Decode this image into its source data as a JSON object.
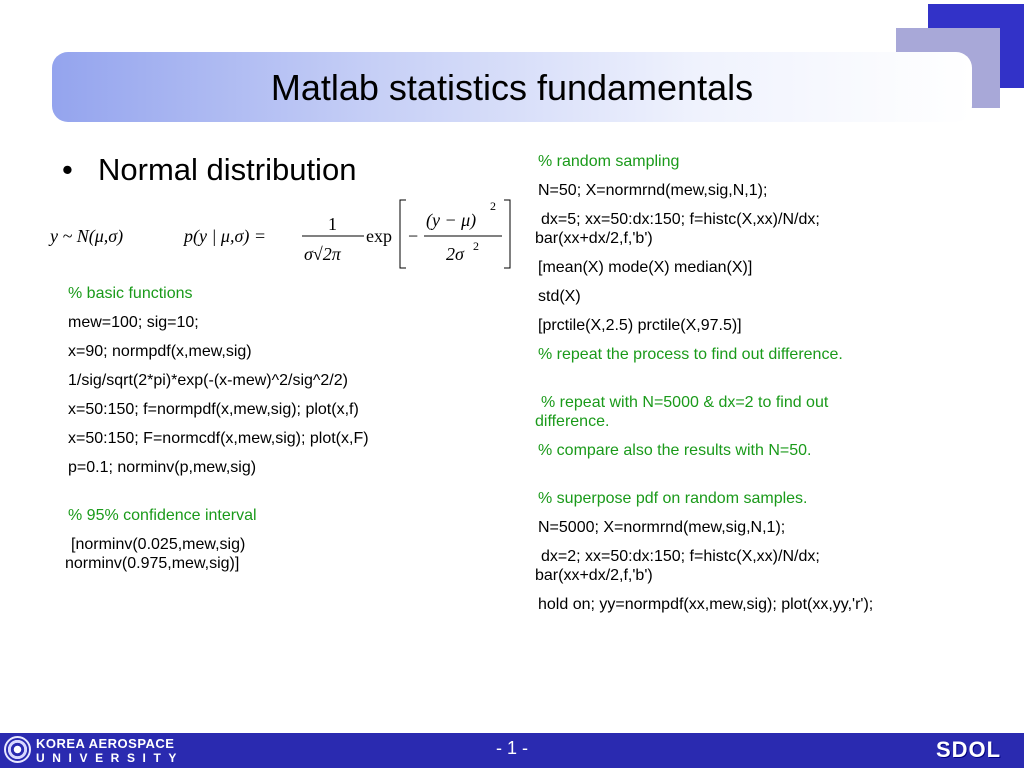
{
  "slide": {
    "title": "Matlab statistics fundamentals",
    "bullet": "Normal distribution",
    "bullet_marker": "•"
  },
  "formula": {
    "left": "y ~ N(μ,σ)",
    "pdf_lhs": "p(y | μ,σ) =",
    "frac_num": "1",
    "frac_den": "σ√2π",
    "exp": "exp",
    "minus": "−",
    "inner_num": "(y − μ)",
    "inner_num_sup": "2",
    "inner_den": "2σ",
    "inner_den_sup": "2"
  },
  "left_code": [
    {
      "text": "% basic functions",
      "comment": true
    },
    {
      "text": "mew=100; sig=10;",
      "comment": false
    },
    {
      "text": "x=90; normpdf(x,mew,sig)",
      "comment": false
    },
    {
      "text": "1/sig/sqrt(2*pi)*exp(-(x-mew)^2/sig^2/2)",
      "comment": false
    },
    {
      "text": "x=50:150; f=normpdf(x,mew,sig); plot(x,f)",
      "comment": false
    },
    {
      "text": "x=50:150; F=normcdf(x,mew,sig); plot(x,F)",
      "comment": false
    },
    {
      "text": "p=0.1; norminv(p,mew,sig)",
      "comment": false
    },
    {
      "text": "% 95% confidence interval",
      "comment": true
    },
    {
      "text": "[norminv(0.025,mew,sig)",
      "cont": "norminv(0.975,mew,sig)]",
      "comment": false
    }
  ],
  "right_code": [
    {
      "text": "% random sampling",
      "comment": true
    },
    {
      "text": "N=50; X=normrnd(mew,sig,N,1);",
      "comment": false
    },
    {
      "text": "dx=5; xx=50:dx:150; f=histc(X,xx)/N/dx;",
      "cont": "bar(xx+dx/2,f,'b')",
      "comment": false
    },
    {
      "text": "[mean(X) mode(X) median(X)]",
      "comment": false
    },
    {
      "text": "std(X)",
      "comment": false
    },
    {
      "text": "[prctile(X,2.5) prctile(X,97.5)]",
      "comment": false
    },
    {
      "text": "% repeat the process to find out difference.",
      "comment": true
    },
    {
      "text": "% repeat with N=5000 & dx=2 to find out",
      "cont": "difference.",
      "comment": true
    },
    {
      "text": "% compare also the results with N=50.",
      "comment": true
    },
    {
      "text": "% superpose pdf on random samples.",
      "comment": true
    },
    {
      "text": "N=5000; X=normrnd(mew,sig,N,1);",
      "comment": false
    },
    {
      "text": "dx=2; xx=50:dx:150; f=histc(X,xx)/N/dx;",
      "cont": "bar(xx+dx/2,f,'b')",
      "comment": false
    },
    {
      "text": "hold on; yy=normpdf(xx,mew,sig); plot(xx,yy,'r');",
      "comment": false
    }
  ],
  "footer": {
    "university_line1": "KOREA AEROSPACE",
    "university_line2": "UNIVERSITY",
    "page_number": "- 1 -",
    "lab_logo": "SDOL",
    "background_color": "#2a2ab0"
  },
  "colors": {
    "comment": "#1a9a1a",
    "code": "#000000",
    "title_gradient_start": "#94a4ee",
    "accent_dark": "#3232c8",
    "accent_light": "#a8a8d8"
  }
}
